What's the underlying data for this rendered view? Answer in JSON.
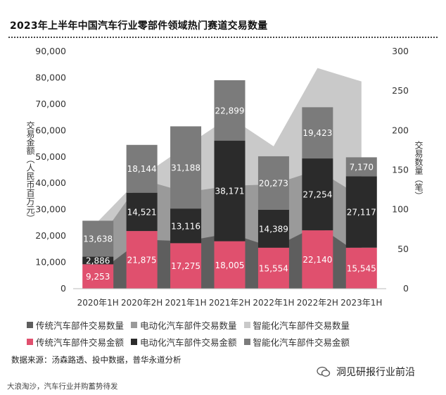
{
  "header": {
    "title": "2023年上半年中国汽车行业零部件领域热门赛道交易数量"
  },
  "chart_data": {
    "type": "stacked-bar-with-area",
    "categories": [
      "2020年1H",
      "2020年2H",
      "2021年1H",
      "2021年2H",
      "2022年1H",
      "2022年2H",
      "2023年1H"
    ],
    "left_axis": {
      "label": "交易金额（人民币百万元）",
      "min": 0,
      "max": 90000,
      "ticks": [
        "0",
        "10,000",
        "20,000",
        "30,000",
        "40,000",
        "50,000",
        "60,000",
        "70,000",
        "80,000",
        "90,000"
      ]
    },
    "right_axis": {
      "label": "交易数量（笔）",
      "min": 0,
      "max": 300,
      "ticks": [
        "0",
        "50",
        "100",
        "150",
        "200",
        "250",
        "300"
      ]
    },
    "bar_series": [
      {
        "name": "传统汽车部件交易金额",
        "color": "#e0506e",
        "values": [
          9253,
          21875,
          17275,
          18005,
          15554,
          22140,
          15545
        ],
        "labels": [
          "9,253",
          "21,875",
          "17,275",
          "18,005",
          "15,554",
          "22,140",
          "15,545"
        ]
      },
      {
        "name": "电动化汽车部件交易金额",
        "color": "#2b2b2b",
        "values": [
          2886,
          14521,
          13116,
          38171,
          14389,
          27254,
          27117
        ],
        "labels": [
          "2,886",
          "14,521",
          "13,116",
          "38,171",
          "14,389",
          "27,254",
          "27,117"
        ]
      },
      {
        "name": "智能化汽车部件交易金额",
        "color": "#7b7b7b",
        "values": [
          13638,
          18144,
          31188,
          22899,
          20273,
          19423,
          7170
        ],
        "labels": [
          "13,638",
          "18,144",
          "31,188",
          "22,899",
          "20,273",
          "19,423",
          "7,170"
        ]
      }
    ],
    "area_series": [
      {
        "name": "传统汽车部件交易数量",
        "color": "#5e5e5e",
        "values": [
          20,
          62,
          60,
          70,
          52,
          80,
          42
        ]
      },
      {
        "name": "电动化汽车部件交易数量",
        "color": "#9a9a9a",
        "values": [
          60,
          138,
          122,
          130,
          132,
          150,
          116
        ]
      },
      {
        "name": "智能化汽车部件交易数量",
        "color": "#c9c9c9",
        "values": [
          85,
          142,
          180,
          217,
          180,
          279,
          262
        ]
      }
    ]
  },
  "legend": {
    "row1": [
      {
        "label": "传统汽车部件交易数量",
        "color": "#5e5e5e"
      },
      {
        "label": "电动化汽车部件交易数量",
        "color": "#9a9a9a"
      },
      {
        "label": "智能化汽车部件交易数量",
        "color": "#c9c9c9"
      }
    ],
    "row2": [
      {
        "label": "传统汽车部件交易金额",
        "color": "#e0506e"
      },
      {
        "label": "电动化汽车部件交易金额",
        "color": "#2b2b2b"
      },
      {
        "label": "智能化汽车部件交易金额",
        "color": "#7b7b7b"
      }
    ]
  },
  "source": "数据来源：汤森路透、投中数据，普华永道分析",
  "brand": "洞见研报行业前沿",
  "footer": "大浪淘沙，汽车行业并购蓄势待发"
}
